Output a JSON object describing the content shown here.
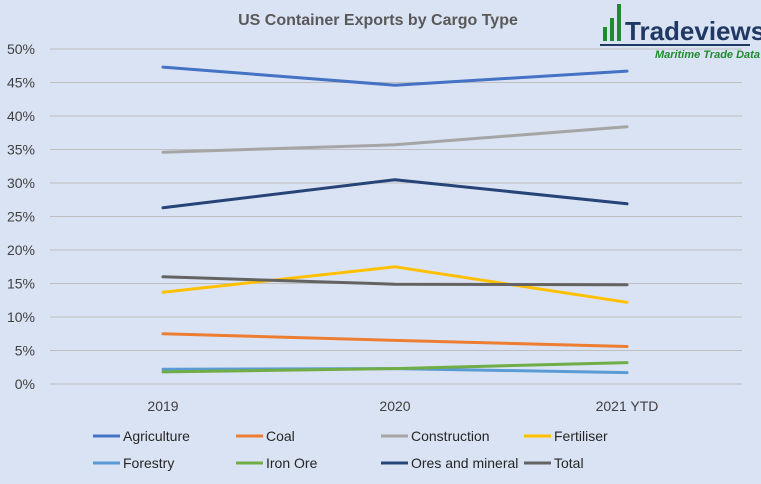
{
  "logo": {
    "name": "Tradeviews",
    "tagline": "Maritime Trade Data"
  },
  "colors": {
    "background": "#dae3f3",
    "gridline": "#bfbfbf",
    "logo_green": "#1e8c2e",
    "logo_navy": "#1f3864"
  },
  "chart_data": {
    "type": "line",
    "title": "US Container Exports by Cargo Type",
    "xlabel": "",
    "ylabel": "",
    "categories": [
      "2019",
      "2020",
      "2021 YTD"
    ],
    "y_ticks": [
      "0%",
      "5%",
      "10%",
      "15%",
      "20%",
      "25%",
      "30%",
      "35%",
      "40%",
      "45%",
      "50%"
    ],
    "ylim": [
      0,
      50
    ],
    "grid": true,
    "legend_position": "bottom",
    "series": [
      {
        "name": "Agriculture",
        "color": "#4472c4",
        "values": [
          47.3,
          44.6,
          46.7
        ]
      },
      {
        "name": "Coal",
        "color": "#ed7d31",
        "values": [
          7.5,
          6.5,
          5.6
        ]
      },
      {
        "name": "Construction",
        "color": "#a5a5a5",
        "values": [
          34.6,
          35.7,
          38.4
        ]
      },
      {
        "name": "Fertiliser",
        "color": "#ffc000",
        "values": [
          13.7,
          17.5,
          12.2
        ]
      },
      {
        "name": "Forestry",
        "color": "#5b9bd5",
        "values": [
          2.2,
          2.3,
          1.7
        ]
      },
      {
        "name": "Iron Ore",
        "color": "#70ad47",
        "values": [
          1.8,
          2.3,
          3.2
        ]
      },
      {
        "name": "Ores and mineral",
        "color": "#264478",
        "values": [
          26.3,
          30.5,
          26.9
        ]
      },
      {
        "name": "Total",
        "color": "#636363",
        "values": [
          16.0,
          14.9,
          14.8
        ]
      }
    ]
  }
}
